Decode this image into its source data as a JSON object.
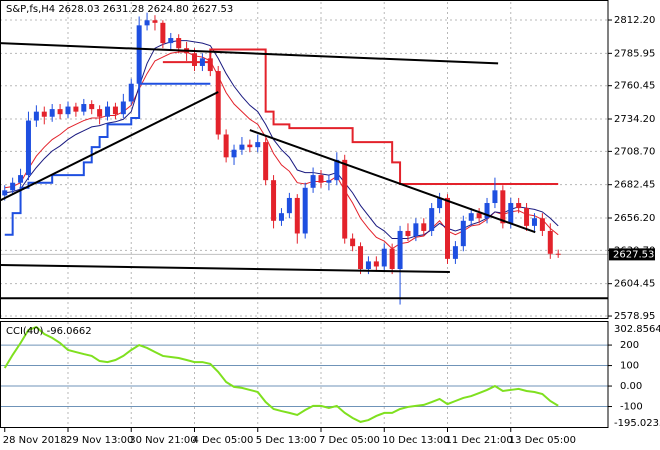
{
  "chart_data": [
    {
      "type": "candlestick",
      "title": "S&P,fs,H4  2628.03 2631.28 2624.80 2627.53",
      "x": [
        "28 Nov 2018",
        null,
        null,
        null,
        null,
        null,
        null,
        null,
        "29 Nov 13:00",
        null,
        null,
        null,
        null,
        null,
        null,
        null,
        "30 Nov 21:00",
        null,
        null,
        null,
        null,
        null,
        null,
        null,
        "4 Dec 05:00",
        null,
        null,
        null,
        null,
        null,
        null,
        null,
        "5 Dec 13:00",
        null,
        null,
        null,
        null,
        null,
        null,
        null,
        "7 Dec 05:00",
        null,
        null,
        null,
        null,
        null,
        null,
        null,
        "10 Dec 13:00",
        null,
        null,
        null,
        null,
        null,
        null,
        null,
        "11 Dec 21:00",
        null,
        null,
        null,
        null,
        null,
        null,
        null,
        "13 Dec 05:00",
        null,
        null,
        null,
        null,
        null,
        null
      ],
      "xlim": [
        -0.6,
        76.3
      ],
      "ylim": [
        2577.4,
        2826.4
      ],
      "yticks": [
        {
          "value": 2812.2,
          "label": "2812.20"
        },
        2785.95,
        2760.45,
        {
          "value": 2734.2,
          "label": "2734.20"
        },
        {
          "value": 2708.7,
          "label": "2708.70"
        },
        2682.45,
        {
          "value": 2656.2,
          "label": "2656.20"
        },
        {
          "value": 2630.7,
          "label": "2630.70"
        },
        2604.45,
        2578.95
      ],
      "grid": true,
      "up_color": "#1e4fe0",
      "down_color": "#e3222b",
      "open": [
        2674,
        2678,
        2684,
        2690,
        2733,
        2740,
        2736,
        2742,
        2738,
        2744,
        2740,
        2746,
        2742,
        2736,
        2744,
        2738,
        2748,
        2762,
        2808,
        2812,
        2810,
        2794,
        2798,
        2790,
        2786,
        2776,
        2782,
        2772,
        2722,
        2704,
        2710,
        2714,
        2712,
        2716,
        2686,
        2654,
        2660,
        2672,
        2644,
        2680,
        2690,
        2684,
        2686,
        2702,
        2640,
        2634,
        2616,
        2622,
        2618,
        2632,
        2616,
        2646,
        2642,
        2652,
        2646,
        2664,
        2672,
        2624,
        2634,
        2654,
        2660,
        2656,
        2668,
        2678,
        2652,
        2668,
        2664,
        2650,
        2656,
        2646,
        2628.03
      ],
      "high": [
        2682,
        2688,
        2695,
        2740,
        2745,
        2744,
        2746,
        2746,
        2748,
        2747,
        2750,
        2749,
        2745,
        2748,
        2747,
        2754,
        2766,
        2815,
        2818,
        2816,
        2812,
        2802,
        2801,
        2795,
        2790,
        2786,
        2785,
        2776,
        2726,
        2714,
        2720,
        2718,
        2722,
        2719,
        2690,
        2664,
        2676,
        2675,
        2684,
        2696,
        2694,
        2690,
        2708,
        2706,
        2644,
        2637,
        2626,
        2626,
        2636,
        2636,
        2650,
        2652,
        2656,
        2656,
        2668,
        2676,
        2675,
        2638,
        2658,
        2664,
        2664,
        2672,
        2688,
        2682,
        2672,
        2672,
        2668,
        2660,
        2660,
        2652,
        2631.28
      ],
      "low": [
        2670,
        2675,
        2680,
        2686,
        2728,
        2730,
        2732,
        2734,
        2735,
        2736,
        2737,
        2738,
        2730,
        2733,
        2734,
        2735,
        2745,
        2758,
        2804,
        2804,
        2790,
        2788,
        2786,
        2780,
        2772,
        2772,
        2768,
        2718,
        2700,
        2698,
        2706,
        2708,
        2708,
        2682,
        2648,
        2650,
        2656,
        2636,
        2640,
        2676,
        2680,
        2678,
        2682,
        2636,
        2630,
        2612,
        2612,
        2614,
        2614,
        2612,
        2588,
        2638,
        2638,
        2642,
        2642,
        2660,
        2620,
        2620,
        2630,
        2650,
        2652,
        2652,
        2664,
        2648,
        2648,
        2660,
        2646,
        2646,
        2642,
        2624,
        2624.8
      ],
      "close": [
        2678,
        2684,
        2690,
        2733,
        2740,
        2736,
        2742,
        2738,
        2744,
        2740,
        2746,
        2742,
        2736,
        2744,
        2738,
        2748,
        2762,
        2808,
        2812,
        2810,
        2794,
        2798,
        2790,
        2786,
        2776,
        2782,
        2772,
        2722,
        2704,
        2710,
        2714,
        2712,
        2716,
        2686,
        2654,
        2660,
        2672,
        2644,
        2680,
        2690,
        2684,
        2686,
        2702,
        2640,
        2634,
        2616,
        2622,
        2618,
        2632,
        2616,
        2646,
        2642,
        2652,
        2646,
        2664,
        2672,
        2624,
        2634,
        2654,
        2660,
        2656,
        2668,
        2678,
        2652,
        2668,
        2664,
        2650,
        2656,
        2646,
        2628,
        2627.53
      ],
      "lines": [
        {
          "color": "#e3222b",
          "width": 1,
          "values": [
            2680,
            2681,
            2684,
            2695,
            2705,
            2712,
            2718,
            2722,
            2727,
            2730,
            2733,
            2735,
            2735,
            2737,
            2737,
            2740,
            2745,
            2758,
            2770,
            2780,
            2783,
            2786,
            2787,
            2787,
            2784,
            2783,
            2780,
            2768,
            2755,
            2746,
            2740,
            2734,
            2730,
            2720,
            2707,
            2698,
            2693,
            2684,
            2683,
            2685,
            2685,
            2685,
            2689,
            2678,
            2668,
            2656,
            2648,
            2641,
            2638,
            2632,
            2636,
            2637,
            2641,
            2642,
            2648,
            2654,
            2646,
            2643,
            2646,
            2650,
            2651,
            2655,
            2661,
            2659,
            2661,
            2662,
            2659,
            2658,
            2655,
            2648,
            2643
          ]
        },
        {
          "color": "#1a1a80",
          "width": 1,
          "values": [
            2676,
            2677,
            2679,
            2688,
            2696,
            2703,
            2709,
            2713,
            2718,
            2722,
            2725,
            2728,
            2729,
            2731,
            2732,
            2734,
            2740,
            2760,
            2778,
            2790,
            2793,
            2795,
            2796,
            2796,
            2795,
            2794,
            2792,
            2782,
            2770,
            2760,
            2752,
            2745,
            2740,
            2730,
            2718,
            2710,
            2704,
            2694,
            2692,
            2692,
            2691,
            2690,
            2692,
            2684,
            2676,
            2666,
            2658,
            2650,
            2646,
            2640,
            2640,
            2640,
            2642,
            2643,
            2647,
            2652,
            2648,
            2646,
            2648,
            2651,
            2653,
            2656,
            2661,
            2660,
            2663,
            2665,
            2664,
            2663,
            2661,
            2656,
            2650
          ]
        },
        {
          "color": "#1e4fe0",
          "width": 2,
          "step": true,
          "values": [
            2643,
            2660,
            2680,
            2684,
            2684,
            2684,
            2690,
            2690,
            2690,
            2690,
            2700,
            2712,
            2720,
            2730,
            2730,
            2730,
            2735,
            2762,
            2762,
            2762,
            2762,
            2762,
            2762,
            2762,
            2762,
            2762,
            2762,
            null,
            null,
            null,
            null,
            null,
            null,
            null,
            null,
            null,
            null,
            null,
            null,
            null,
            null,
            null,
            null,
            null,
            null,
            null,
            null,
            null,
            null,
            null,
            null,
            null,
            null,
            null,
            null,
            null,
            null,
            null,
            null,
            null,
            null,
            null,
            null,
            null,
            null,
            null,
            null,
            null,
            null,
            null,
            null
          ]
        },
        {
          "color": "#e3222b",
          "width": 2,
          "step": true,
          "values": [
            null,
            null,
            null,
            null,
            null,
            null,
            null,
            null,
            null,
            null,
            null,
            null,
            null,
            null,
            null,
            null,
            null,
            null,
            null,
            null,
            2779,
            2779,
            2779,
            2779,
            2779,
            2779,
            2789,
            2789,
            2789,
            2789,
            2789,
            2789,
            2789,
            2740,
            2730,
            2730,
            2727,
            2727,
            2727,
            2727,
            2727,
            2727,
            2727,
            2727,
            2716,
            2716,
            2716,
            2716,
            2716,
            2700,
            2683,
            2683,
            2683,
            2683,
            2683,
            2683,
            2683,
            2683,
            2683,
            2683,
            2683,
            2683,
            2683,
            2683,
            2683,
            2683,
            2683,
            2683,
            2683,
            2683,
            2683
          ]
        }
      ],
      "trendline_color": "#000000",
      "trendlines": [
        {
          "x": [
            -0.6,
            62.4
          ],
          "values": [
            2794,
            2778
          ]
        },
        {
          "x": [
            -0.6,
            27
          ],
          "values": [
            2670,
            2755.5
          ]
        },
        {
          "x": [
            31,
            67.1
          ],
          "values": [
            2725.5,
            2645
          ]
        },
        {
          "x": [
            -0.6,
            56.3
          ],
          "values": [
            2619.2,
            2613.6
          ]
        },
        {
          "x": [
            -0.6,
            76.3
          ],
          "values": [
            2593,
            2593
          ]
        }
      ]
    },
    {
      "type": "line",
      "title": "CCI(40) -96.0662",
      "ylim": [
        -195.0233,
        302.8564
      ],
      "yticks": [
        200,
        100,
        {
          "value": 0,
          "label": "0.00"
        },
        -100
      ],
      "level_color": "#6f93b8",
      "series": [
        {
          "color": "#7fe01f",
          "values": [
            88,
            152,
            210,
            274,
            288,
            254,
            235,
            210,
            176,
            166,
            156,
            147,
            122,
            117,
            127,
            147,
            176,
            200,
            186,
            166,
            147,
            142,
            137,
            127,
            117,
            117,
            108,
            69,
            20,
            -4,
            -9,
            -19,
            -29,
            -78,
            -112,
            -122,
            -131,
            -141,
            -117,
            -97,
            -97,
            -107,
            -97,
            -131,
            -156,
            -175,
            -166,
            -146,
            -131,
            -131,
            -112,
            -102,
            -97,
            -92,
            -78,
            -63,
            -88,
            -73,
            -58,
            -49,
            -34,
            -19,
            0,
            -24,
            -19,
            -14,
            -24,
            -29,
            -39,
            -73,
            -96.0662
          ]
        }
      ]
    }
  ]
}
